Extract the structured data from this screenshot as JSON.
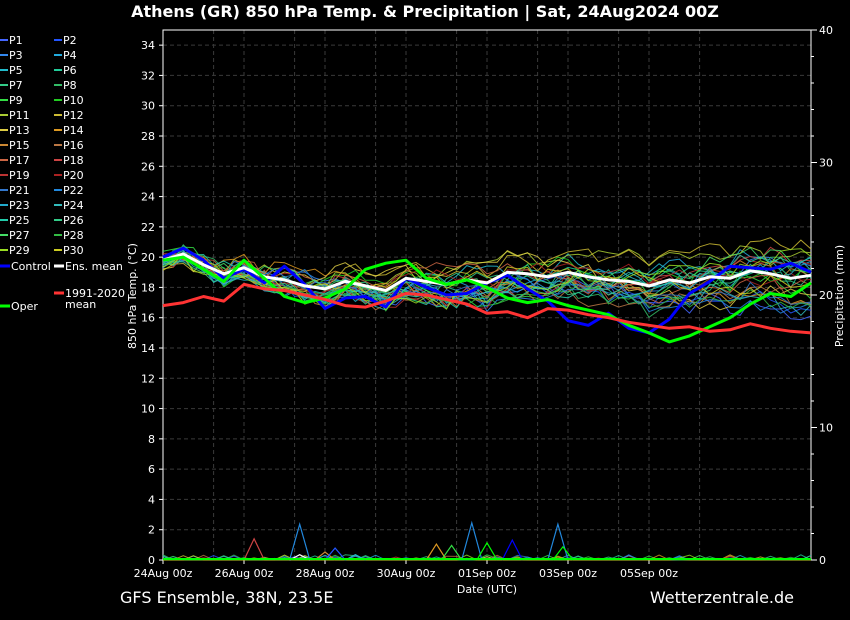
{
  "title": "Athens  (GR)  850 hPa Temp. & Precipitation | Sat, 24Aug2024 00Z",
  "footer_left": "GFS Ensemble, 38N, 23.5E",
  "footer_right": "Wetterzentrale.de",
  "chart_data": {
    "type": "line",
    "xlabel": "Date (UTC)",
    "ylabel": "850 hPa Temp. (°C)",
    "y2label": "Precipitation (mm)",
    "ylim": [
      0,
      35
    ],
    "y2lim": [
      0,
      40
    ],
    "xlim_hours": [
      0,
      384
    ],
    "x_tick_labels": [
      "24Aug 00z",
      "26Aug 00z",
      "28Aug 00z",
      "30Aug 00z",
      "01Sep 00z",
      "03Sep 00z",
      "05Sep 00z"
    ],
    "y_tick_labels": [
      "0",
      "2",
      "4",
      "6",
      "8",
      "10",
      "12",
      "14",
      "16",
      "18",
      "20",
      "22",
      "24",
      "26",
      "28",
      "30",
      "32",
      "34"
    ],
    "y2_tick_labels": [
      "0",
      "10",
      "20",
      "30",
      "40"
    ],
    "legend": [
      {
        "name": "P1",
        "color": "#4466ff"
      },
      {
        "name": "P2",
        "color": "#2255ff"
      },
      {
        "name": "P3",
        "color": "#3388ee"
      },
      {
        "name": "P4",
        "color": "#22aadd"
      },
      {
        "name": "P5",
        "color": "#22bbcc"
      },
      {
        "name": "P6",
        "color": "#22cc99"
      },
      {
        "name": "P7",
        "color": "#33cc88"
      },
      {
        "name": "P8",
        "color": "#33bb66"
      },
      {
        "name": "P9",
        "color": "#33dd44"
      },
      {
        "name": "P10",
        "color": "#22cc22"
      },
      {
        "name": "P11",
        "color": "#aacc33"
      },
      {
        "name": "P12",
        "color": "#ccbb33"
      },
      {
        "name": "P13",
        "color": "#ddcc44"
      },
      {
        "name": "P14",
        "color": "#dd9922"
      },
      {
        "name": "P15",
        "color": "#cc8833"
      },
      {
        "name": "P16",
        "color": "#bb7744"
      },
      {
        "name": "P17",
        "color": "#cc6644"
      },
      {
        "name": "P18",
        "color": "#cc4444"
      },
      {
        "name": "P19",
        "color": "#bb3333"
      },
      {
        "name": "P20",
        "color": "#aa2222"
      },
      {
        "name": "P21",
        "color": "#3377cc"
      },
      {
        "name": "P22",
        "color": "#2288dd"
      },
      {
        "name": "P23",
        "color": "#22aacc"
      },
      {
        "name": "P24",
        "color": "#33bbbb"
      },
      {
        "name": "P25",
        "color": "#22ccaa"
      },
      {
        "name": "P26",
        "color": "#33cc88"
      },
      {
        "name": "P27",
        "color": "#44dd66"
      },
      {
        "name": "P28",
        "color": "#33bb44"
      },
      {
        "name": "P29",
        "color": "#99dd22"
      },
      {
        "name": "P30",
        "color": "#cccc22"
      }
    ],
    "special_legend": [
      {
        "name": "Control",
        "color": "#0000ff"
      },
      {
        "name": "Ens. mean",
        "color": "#ffffff"
      },
      {
        "name": "Oper",
        "color": "#00ff00"
      },
      {
        "name": "1991-2020 mean",
        "color": "#ff3333"
      }
    ],
    "series_special": [
      {
        "name": "Control",
        "color": "#0000ff",
        "hours": [
          0,
          12,
          24,
          36,
          48,
          60,
          72,
          84,
          96,
          108,
          120,
          132,
          144,
          156,
          168,
          180,
          192,
          204,
          216,
          228,
          240,
          252,
          264,
          276,
          288,
          300,
          312,
          324,
          336,
          348,
          360,
          372,
          384
        ],
        "values": [
          20.0,
          20.6,
          19.8,
          18.6,
          19.2,
          18.3,
          19.4,
          18.2,
          16.6,
          17.3,
          17.4,
          16.7,
          18.6,
          18.0,
          17.5,
          17.6,
          18.3,
          18.8,
          17.9,
          17.1,
          15.8,
          15.5,
          16.3,
          15.3,
          15.0,
          15.9,
          17.6,
          18.4,
          19.4,
          19.3,
          19.2,
          19.6,
          19.0
        ]
      },
      {
        "name": "Ens. mean",
        "color": "#ffffff",
        "hours": [
          0,
          12,
          24,
          36,
          48,
          60,
          72,
          84,
          96,
          108,
          120,
          132,
          144,
          156,
          168,
          180,
          192,
          204,
          216,
          228,
          240,
          252,
          264,
          276,
          288,
          300,
          312,
          324,
          336,
          348,
          360,
          372,
          384
        ],
        "values": [
          19.8,
          20.2,
          19.5,
          18.9,
          19.3,
          18.7,
          18.5,
          18.1,
          17.9,
          18.4,
          18.1,
          17.8,
          18.6,
          18.4,
          18.2,
          18.5,
          18.3,
          19.0,
          18.9,
          18.7,
          19.0,
          18.7,
          18.5,
          18.4,
          18.1,
          18.5,
          18.3,
          18.7,
          18.6,
          19.1,
          18.9,
          18.6,
          18.8
        ]
      },
      {
        "name": "Oper",
        "color": "#00ff00",
        "hours": [
          0,
          12,
          24,
          36,
          48,
          60,
          72,
          84,
          96,
          108,
          120,
          132,
          144,
          156,
          168,
          180,
          192,
          204,
          216,
          228,
          240,
          252,
          264,
          276,
          288,
          300,
          312,
          324,
          336,
          348,
          360,
          372,
          384
        ],
        "values": [
          19.8,
          20.0,
          19.2,
          18.4,
          19.8,
          18.6,
          17.4,
          17.0,
          17.3,
          17.9,
          19.2,
          19.6,
          19.8,
          18.6,
          18.2,
          18.5,
          18.0,
          17.3,
          17.0,
          17.2,
          16.8,
          16.5,
          16.2,
          15.5,
          15.0,
          14.4,
          14.8,
          15.4,
          16.0,
          16.9,
          17.6,
          17.4,
          18.3
        ]
      },
      {
        "name": "1991-2020 mean",
        "color": "#ff3333",
        "hours": [
          0,
          12,
          24,
          36,
          48,
          60,
          72,
          84,
          96,
          108,
          120,
          132,
          144,
          156,
          168,
          180,
          192,
          204,
          216,
          228,
          240,
          252,
          264,
          276,
          288,
          300,
          312,
          324,
          336,
          348,
          360,
          372,
          384
        ],
        "values": [
          16.8,
          17.0,
          17.4,
          17.1,
          18.2,
          17.9,
          17.8,
          17.5,
          17.2,
          16.8,
          16.7,
          17.1,
          17.6,
          17.5,
          17.2,
          16.9,
          16.3,
          16.4,
          16.0,
          16.6,
          16.5,
          16.2,
          16.0,
          15.7,
          15.5,
          15.3,
          15.4,
          15.1,
          15.2,
          15.6,
          15.3,
          15.1,
          15.0
        ]
      }
    ],
    "precip_spikes": [
      {
        "hour": 54,
        "mm": 1.6,
        "color": "#cc4444"
      },
      {
        "hour": 81,
        "mm": 0.4,
        "color": "#ffffff"
      },
      {
        "hour": 81,
        "mm": 2.7,
        "color": "#2288dd"
      },
      {
        "hour": 96,
        "mm": 0.6,
        "color": "#cc8833"
      },
      {
        "hour": 102,
        "mm": 0.9,
        "color": "#2255ff"
      },
      {
        "hour": 114,
        "mm": 0.4,
        "color": "#22bbcc"
      },
      {
        "hour": 162,
        "mm": 1.2,
        "color": "#dd9922"
      },
      {
        "hour": 171,
        "mm": 1.1,
        "color": "#33dd44"
      },
      {
        "hour": 183,
        "mm": 2.8,
        "color": "#2288dd"
      },
      {
        "hour": 192,
        "mm": 1.3,
        "color": "#00ff00"
      },
      {
        "hour": 207,
        "mm": 1.5,
        "color": "#0000ff"
      },
      {
        "hour": 234,
        "mm": 2.7,
        "color": "#2288dd"
      },
      {
        "hour": 237,
        "mm": 1.0,
        "color": "#00ff00"
      }
    ]
  }
}
